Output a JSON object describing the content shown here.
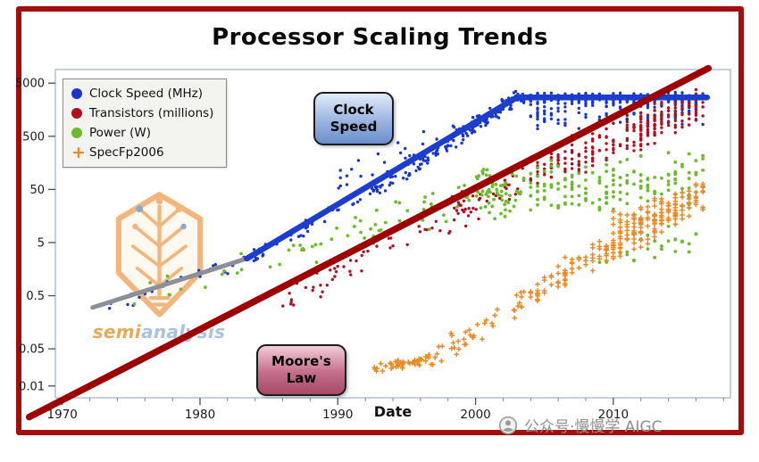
{
  "page": {
    "title": "Processor Scaling Trends",
    "watermark": {
      "brand_prefix": "semi",
      "brand_suffix": "analysis"
    },
    "caption": {
      "text": "公众号·慢慢学 AIGC"
    }
  },
  "legend": {
    "items": [
      {
        "label": "Clock Speed (MHz)",
        "marker": "dot",
        "color": "#1a35cc"
      },
      {
        "label": "Transistors (millions)",
        "marker": "dot",
        "color": "#b01020"
      },
      {
        "label": "Power (W)",
        "marker": "dot",
        "color": "#6cbb2a"
      },
      {
        "label": "SpecFp2006",
        "marker": "plus",
        "color": "#ee8822"
      }
    ]
  },
  "annotations": {
    "clock_speed": {
      "line1": "Clock",
      "line2": "Speed"
    },
    "moores_law": {
      "line1": "Moore's",
      "line2": "Law"
    }
  },
  "chart_data": {
    "type": "scatter",
    "title": "Processor Scaling Trends",
    "xlabel": "Date",
    "ylabel": "",
    "y_scale": "log",
    "grid": false,
    "legend_position": "upper-left",
    "x_range": [
      1969.5,
      2018.5
    ],
    "y_range": [
      0.006,
      9000
    ],
    "x_ticks": [
      1970,
      1980,
      1990,
      2000,
      2010
    ],
    "x_minor_step": 2,
    "y_ticks": [
      0.01,
      0.05,
      0.5,
      5,
      50,
      500,
      5000
    ],
    "series": [
      {
        "id": "clock-speed",
        "name": "Clock Speed (MHz)",
        "marker": "dot",
        "color": "#1a35cc",
        "point_radius": 1.7,
        "segments": [
          {
            "from_year": 1973,
            "to_year": 1983,
            "from_value": 0.32,
            "to_value": 2.2,
            "count": 22,
            "spread_log": 0.18
          },
          {
            "from_year": 1983,
            "to_year": 1995,
            "from_value": 2.2,
            "to_value": 100,
            "count": 60,
            "spread_log": 0.15
          },
          {
            "from_year": 1995,
            "to_year": 2003,
            "from_value": 100,
            "to_value": 2800,
            "count": 130,
            "spread_log": 0.18
          },
          {
            "from_year": 2003,
            "to_year": 2016.5,
            "from_value": 2600,
            "to_value": 2600,
            "count": 210,
            "spread_log": 0.12
          },
          {
            "from_year": 2004,
            "to_year": 2016.5,
            "from_value": 1300,
            "to_value": 1600,
            "count": 120,
            "spread_log": 0.35
          },
          {
            "from_year": 1990,
            "to_year": 2002,
            "from_value": 60,
            "to_value": 1500,
            "count": 40,
            "spread_log": 0.45
          }
        ]
      },
      {
        "id": "transistors",
        "name": "Transistors (millions)",
        "marker": "dot",
        "color": "#b01020",
        "point_radius": 1.7,
        "segments": [
          {
            "from_year": 1986,
            "to_year": 1998,
            "from_value": 0.4,
            "to_value": 16,
            "count": 45,
            "spread_log": 0.35
          },
          {
            "from_year": 1998,
            "to_year": 2006,
            "from_value": 16,
            "to_value": 160,
            "count": 75,
            "spread_log": 0.4
          },
          {
            "from_year": 2006,
            "to_year": 2016.5,
            "from_value": 160,
            "to_value": 2000,
            "count": 150,
            "spread_log": 0.45
          },
          {
            "from_year": 2011,
            "to_year": 2016.5,
            "from_value": 400,
            "to_value": 3000,
            "count": 60,
            "spread_log": 0.35
          }
        ]
      },
      {
        "id": "power",
        "name": "Power (W)",
        "marker": "dot",
        "color": "#6cbb2a",
        "point_radius": 1.9,
        "segments": [
          {
            "from_year": 1975,
            "to_year": 1990,
            "from_value": 0.4,
            "to_value": 6,
            "count": 30,
            "spread_log": 0.35
          },
          {
            "from_year": 1990,
            "to_year": 2000,
            "from_value": 6,
            "to_value": 35,
            "count": 45,
            "spread_log": 0.4
          },
          {
            "from_year": 2000,
            "to_year": 2016.5,
            "from_value": 45,
            "to_value": 85,
            "count": 220,
            "spread_log": 0.55
          },
          {
            "from_year": 2008,
            "to_year": 2016,
            "from_value": 2.5,
            "to_value": 5,
            "count": 25,
            "spread_log": 0.4
          }
        ]
      },
      {
        "id": "specfp2006",
        "name": "SpecFp2006",
        "marker": "plus",
        "color": "#ee8822",
        "point_radius": 2.8,
        "segments": [
          {
            "from_year": 1992.5,
            "to_year": 1997,
            "from_value": 0.022,
            "to_value": 0.032,
            "count": 45,
            "spread_log": 0.12
          },
          {
            "from_year": 1997,
            "to_year": 2005,
            "from_value": 0.032,
            "to_value": 0.8,
            "count": 55,
            "spread_log": 0.3
          },
          {
            "from_year": 2005,
            "to_year": 2016.5,
            "from_value": 0.8,
            "to_value": 36,
            "count": 150,
            "spread_log": 0.3
          },
          {
            "from_year": 2010,
            "to_year": 2016.3,
            "from_value": 10,
            "to_value": 40,
            "count": 70,
            "spread_log": 0.3
          }
        ]
      }
    ],
    "trend_lines": [
      {
        "id": "early-clock-trend",
        "color": "#8a8f99",
        "width": 5,
        "points": [
          [
            1972.2,
            0.3
          ],
          [
            1983.6,
            2.6
          ]
        ]
      },
      {
        "id": "clock-speed-trend",
        "color": "#1b3ecc",
        "width": 6.5,
        "points": [
          [
            1983.4,
            2.5
          ],
          [
            2003,
            2700
          ],
          [
            2016.8,
            2700
          ]
        ]
      },
      {
        "id": "moores-law-trend",
        "color": "#9c0000",
        "width": 7.5,
        "points": [
          [
            1967.6,
            0.0026
          ],
          [
            2016.9,
            9500
          ]
        ]
      }
    ]
  }
}
